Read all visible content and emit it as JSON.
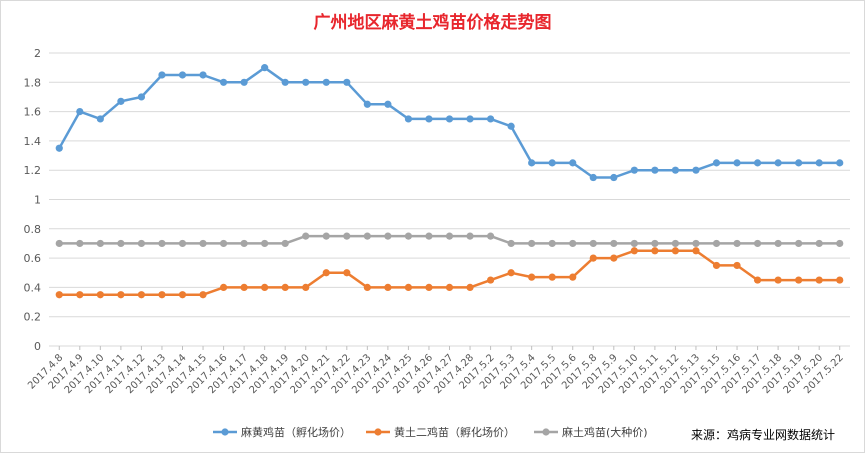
{
  "chart_data": {
    "type": "line",
    "title": "广州地区麻黄土鸡苗价格走势图",
    "ylim": [
      0,
      2
    ],
    "yticks": [
      "0",
      "0.2",
      "0.4",
      "0.6",
      "0.8",
      "1",
      "1.2",
      "1.4",
      "1.6",
      "1.8",
      "2"
    ],
    "grid": true,
    "legend_position": "bottom",
    "categories": [
      "2017.4.8",
      "2017.4.9",
      "2017.4.10",
      "2017.4.11",
      "2017.4.12",
      "2017.4.13",
      "2017.4.14",
      "2017.4.15",
      "2017.4.16",
      "2017.4.17",
      "2017.4.18",
      "2017.4.19",
      "2017.4.20",
      "2017.4.21",
      "2017.4.22",
      "2017.4.23",
      "2017.4.24",
      "2017.4.25",
      "2017.4.26",
      "2017.4.27",
      "2017.4.28",
      "2017.5.2",
      "2017.5.3",
      "2017.5.4",
      "2017.5.5",
      "2017.5.6",
      "2017.5.8",
      "2017.5.9",
      "2017.5.10",
      "2017.5.11",
      "2017.5.12",
      "2017.5.13",
      "2017.5.15",
      "2017.5.16",
      "2017.5.17",
      "2017.5.18",
      "2017.5.19",
      "2017.5.20",
      "2017.5.22"
    ],
    "series": [
      {
        "name": "麻黄鸡苗（孵化场价）",
        "color": "#5b9bd5",
        "values": [
          1.35,
          1.6,
          1.55,
          1.67,
          1.7,
          1.85,
          1.85,
          1.85,
          1.8,
          1.8,
          1.9,
          1.8,
          1.8,
          1.8,
          1.8,
          1.65,
          1.65,
          1.55,
          1.55,
          1.55,
          1.55,
          1.55,
          1.5,
          1.25,
          1.25,
          1.25,
          1.15,
          1.15,
          1.2,
          1.2,
          1.2,
          1.2,
          1.25,
          1.25,
          1.25,
          1.25,
          1.25,
          1.25,
          1.25
        ]
      },
      {
        "name": "黄土二鸡苗（孵化场价）",
        "color": "#ed7d31",
        "values": [
          0.35,
          0.35,
          0.35,
          0.35,
          0.35,
          0.35,
          0.35,
          0.35,
          0.4,
          0.4,
          0.4,
          0.4,
          0.4,
          0.5,
          0.5,
          0.4,
          0.4,
          0.4,
          0.4,
          0.4,
          0.4,
          0.45,
          0.5,
          0.47,
          0.47,
          0.47,
          0.6,
          0.6,
          0.65,
          0.65,
          0.65,
          0.65,
          0.55,
          0.55,
          0.45,
          0.45,
          0.45,
          0.45,
          0.45
        ]
      },
      {
        "name": "麻土鸡苗(大种价)",
        "color": "#a5a5a5",
        "values": [
          0.7,
          0.7,
          0.7,
          0.7,
          0.7,
          0.7,
          0.7,
          0.7,
          0.7,
          0.7,
          0.7,
          0.7,
          0.75,
          0.75,
          0.75,
          0.75,
          0.75,
          0.75,
          0.75,
          0.75,
          0.75,
          0.75,
          0.7,
          0.7,
          0.7,
          0.7,
          0.7,
          0.7,
          0.7,
          0.7,
          0.7,
          0.7,
          0.7,
          0.7,
          0.7,
          0.7,
          0.7,
          0.7,
          0.7
        ]
      }
    ]
  },
  "source_text": "来源：鸡病专业网数据统计"
}
